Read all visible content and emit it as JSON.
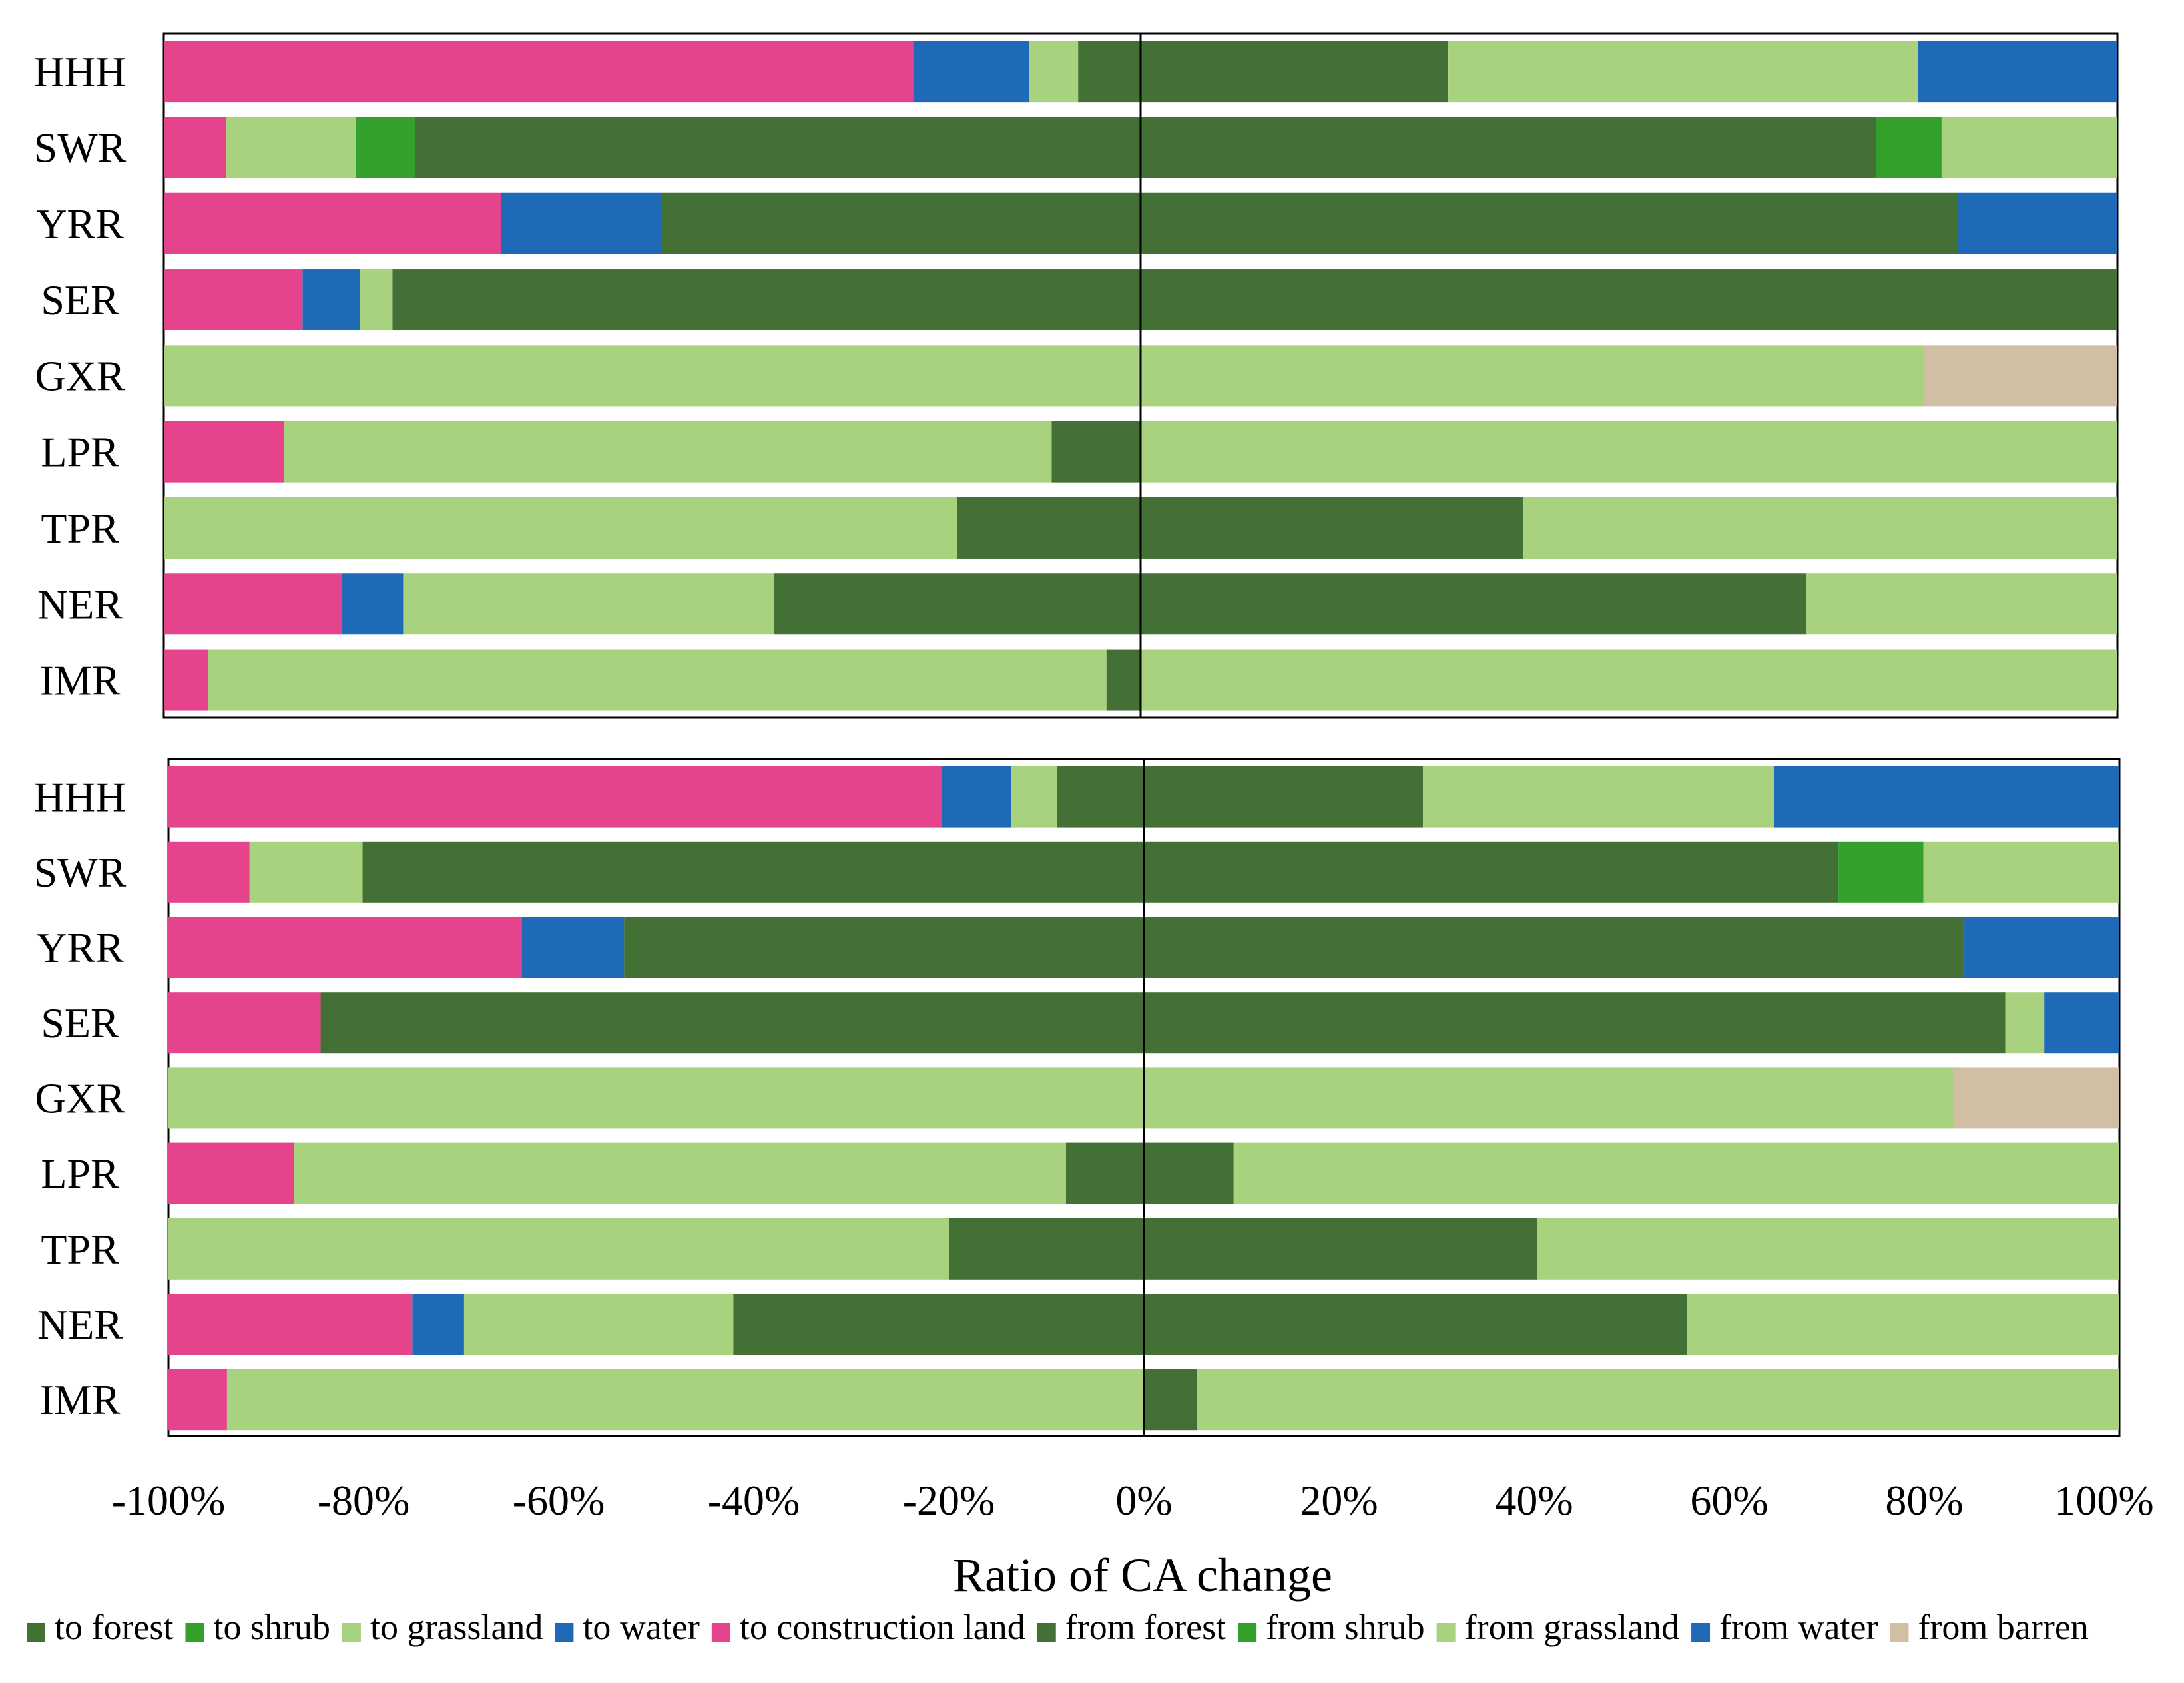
{
  "chart_data": {
    "type": "bar",
    "orientation": "horizontal",
    "stacked": true,
    "diverging": true,
    "xlabel": "Ratio of CA change",
    "xlim": [
      -100,
      100
    ],
    "xticks": [
      -100,
      -80,
      -60,
      -40,
      -20,
      0,
      20,
      40,
      60,
      80,
      100
    ],
    "xtick_labels": [
      "-100%",
      "-80%",
      "-60%",
      "-40%",
      "-20%",
      "0%",
      "20%",
      "40%",
      "60%",
      "80%",
      "100%"
    ],
    "colors": {
      "forest": "#437034",
      "shrub": "#33a02c",
      "grassland": "#a9d27e",
      "water": "#1f6ab7",
      "construction": "#e5448d",
      "barren": "#d1bfa3"
    },
    "legend": [
      {
        "label": "to forest",
        "color_key": "forest"
      },
      {
        "label": "to shrub",
        "color_key": "shrub"
      },
      {
        "label": "to grassland",
        "color_key": "grassland"
      },
      {
        "label": "to water",
        "color_key": "water"
      },
      {
        "label": "to construction land",
        "color_key": "construction"
      },
      {
        "label": "from forest",
        "color_key": "forest"
      },
      {
        "label": "from shrub",
        "color_key": "shrub"
      },
      {
        "label": "from grassland",
        "color_key": "grassland"
      },
      {
        "label": "from water",
        "color_key": "water"
      },
      {
        "label": "from barren",
        "color_key": "barren"
      }
    ],
    "panels": [
      {
        "name": "panel-1",
        "categories": [
          "HHH",
          "SWR",
          "YRR",
          "SER",
          "GXR",
          "LPR",
          "TPR",
          "NER",
          "IMR"
        ],
        "negative": [
          [
            {
              "k": "forest",
              "v": 6.4
            },
            {
              "k": "grassland",
              "v": 5.0
            },
            {
              "k": "water",
              "v": 11.9
            },
            {
              "k": "construction",
              "v": 76.7
            }
          ],
          [
            {
              "k": "forest",
              "v": 74.3
            },
            {
              "k": "shrub",
              "v": 6.0
            },
            {
              "k": "grassland",
              "v": 13.3
            },
            {
              "k": "construction",
              "v": 6.4
            }
          ],
          [
            {
              "k": "forest",
              "v": 49.1
            },
            {
              "k": "water",
              "v": 16.4
            },
            {
              "k": "construction",
              "v": 34.5
            }
          ],
          [
            {
              "k": "forest",
              "v": 76.6
            },
            {
              "k": "grassland",
              "v": 3.3
            },
            {
              "k": "water",
              "v": 5.9
            },
            {
              "k": "construction",
              "v": 14.2
            }
          ],
          [
            {
              "k": "grassland",
              "v": 100.0
            }
          ],
          [
            {
              "k": "forest",
              "v": 9.1
            },
            {
              "k": "grassland",
              "v": 78.6
            },
            {
              "k": "construction",
              "v": 12.3
            }
          ],
          [
            {
              "k": "forest",
              "v": 18.8
            },
            {
              "k": "grassland",
              "v": 81.2
            }
          ],
          [
            {
              "k": "forest",
              "v": 37.5
            },
            {
              "k": "grassland",
              "v": 38.0
            },
            {
              "k": "water",
              "v": 6.3
            },
            {
              "k": "construction",
              "v": 18.2
            }
          ],
          [
            {
              "k": "forest",
              "v": 3.5
            },
            {
              "k": "grassland",
              "v": 92.0
            },
            {
              "k": "construction",
              "v": 4.5
            }
          ]
        ],
        "positive": [
          [
            {
              "k": "forest",
              "v": 31.5
            },
            {
              "k": "grassland",
              "v": 48.1
            },
            {
              "k": "water",
              "v": 20.4
            }
          ],
          [
            {
              "k": "forest",
              "v": 75.3
            },
            {
              "k": "shrub",
              "v": 6.7
            },
            {
              "k": "grassland",
              "v": 18.0
            }
          ],
          [
            {
              "k": "forest",
              "v": 83.7
            },
            {
              "k": "water",
              "v": 16.3
            }
          ],
          [
            {
              "k": "forest",
              "v": 100.0
            }
          ],
          [
            {
              "k": "grassland",
              "v": 80.2
            },
            {
              "k": "barren",
              "v": 19.8
            }
          ],
          [
            {
              "k": "grassland",
              "v": 100.0
            }
          ],
          [
            {
              "k": "forest",
              "v": 39.2
            },
            {
              "k": "grassland",
              "v": 60.8
            }
          ],
          [
            {
              "k": "forest",
              "v": 68.1
            },
            {
              "k": "grassland",
              "v": 31.9
            }
          ],
          [
            {
              "k": "grassland",
              "v": 100.0
            }
          ]
        ]
      },
      {
        "name": "panel-2",
        "categories": [
          "HHH",
          "SWR",
          "YRR",
          "SER",
          "GXR",
          "LPR",
          "TPR",
          "NER",
          "IMR"
        ],
        "negative": [
          [
            {
              "k": "forest",
              "v": 8.9
            },
            {
              "k": "grassland",
              "v": 4.7
            },
            {
              "k": "water",
              "v": 7.2
            },
            {
              "k": "construction",
              "v": 79.2
            }
          ],
          [
            {
              "k": "forest",
              "v": 80.1
            },
            {
              "k": "grassland",
              "v": 11.6
            },
            {
              "k": "construction",
              "v": 8.3
            }
          ],
          [
            {
              "k": "forest",
              "v": 53.3
            },
            {
              "k": "water",
              "v": 10.5
            },
            {
              "k": "construction",
              "v": 36.2
            }
          ],
          [
            {
              "k": "forest",
              "v": 84.4
            },
            {
              "k": "construction",
              "v": 15.6
            }
          ],
          [
            {
              "k": "grassland",
              "v": 100.0
            }
          ],
          [
            {
              "k": "forest",
              "v": 8.0
            },
            {
              "k": "grassland",
              "v": 79.1
            },
            {
              "k": "construction",
              "v": 12.9
            }
          ],
          [
            {
              "k": "forest",
              "v": 20.0
            },
            {
              "k": "grassland",
              "v": 80.0
            }
          ],
          [
            {
              "k": "forest",
              "v": 42.1
            },
            {
              "k": "grassland",
              "v": 27.6
            },
            {
              "k": "water",
              "v": 5.3
            },
            {
              "k": "construction",
              "v": 25.0
            }
          ],
          [
            {
              "k": "grassland",
              "v": 94.0
            },
            {
              "k": "construction",
              "v": 6.0
            }
          ]
        ],
        "positive": [
          [
            {
              "k": "forest",
              "v": 28.6
            },
            {
              "k": "grassland",
              "v": 36.0
            },
            {
              "k": "water",
              "v": 35.4
            }
          ],
          [
            {
              "k": "forest",
              "v": 71.2
            },
            {
              "k": "shrub",
              "v": 8.7
            },
            {
              "k": "grassland",
              "v": 20.1
            }
          ],
          [
            {
              "k": "forest",
              "v": 84.1
            },
            {
              "k": "water",
              "v": 15.9
            }
          ],
          [
            {
              "k": "forest",
              "v": 88.3
            },
            {
              "k": "grassland",
              "v": 4.0
            },
            {
              "k": "water",
              "v": 7.7
            }
          ],
          [
            {
              "k": "grassland",
              "v": 83.0
            },
            {
              "k": "barren",
              "v": 17.0
            }
          ],
          [
            {
              "k": "forest",
              "v": 9.2
            },
            {
              "k": "grassland",
              "v": 90.8
            }
          ],
          [
            {
              "k": "forest",
              "v": 40.3
            },
            {
              "k": "grassland",
              "v": 59.7
            }
          ],
          [
            {
              "k": "forest",
              "v": 55.7
            },
            {
              "k": "grassland",
              "v": 44.3
            }
          ],
          [
            {
              "k": "forest",
              "v": 5.4
            },
            {
              "k": "grassland",
              "v": 94.6
            }
          ]
        ]
      }
    ]
  }
}
